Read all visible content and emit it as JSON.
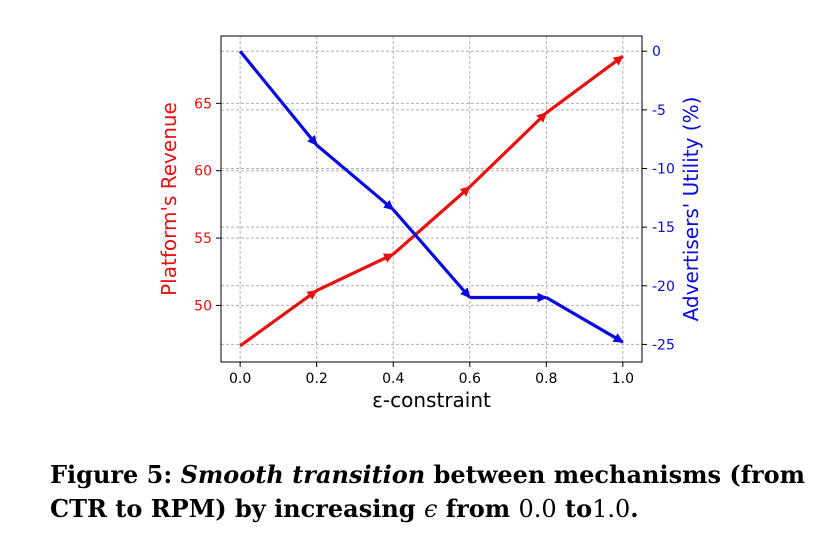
{
  "chart_data": {
    "type": "line",
    "xlabel": "ε-constraint",
    "x": [
      0.0,
      0.2,
      0.4,
      0.6,
      0.8,
      1.0
    ],
    "xticks": [
      "0.0",
      "0.2",
      "0.4",
      "0.6",
      "0.8",
      "1.0"
    ],
    "xlim": [
      -0.05,
      1.05
    ],
    "grid": true,
    "series": [
      {
        "name": "Platform's Revenue",
        "axis": "left",
        "color": "#e81010",
        "values": [
          47.0,
          51.1,
          53.8,
          58.8,
          64.3,
          68.5
        ]
      },
      {
        "name": "Advertisers' Utility (%)",
        "axis": "right",
        "color": "#0a0ae0",
        "values": [
          0.0,
          -8.0,
          -13.5,
          -21.0,
          -21.0,
          -24.8
        ]
      }
    ],
    "left_axis": {
      "label": "Platform's Revenue",
      "ticks": [
        50,
        55,
        60,
        65
      ],
      "tick_labels": [
        "50",
        "55",
        "60",
        "65"
      ],
      "range": [
        45.8,
        70.0
      ]
    },
    "right_axis": {
      "label": "Advertisers' Utility (%)",
      "ticks": [
        0,
        -5,
        -10,
        -15,
        -20,
        -25
      ],
      "tick_labels": [
        "0",
        "-5",
        "-10",
        "-15",
        "-20",
        "-25"
      ],
      "range": [
        -26.5,
        1.3
      ]
    }
  },
  "caption": {
    "prefix": "Figure 5:",
    "italic": "Smooth transition",
    "text1": "between mechanisms (from CTR to RPM) by increasing",
    "epsilon": "ϵ",
    "text2": "from",
    "from_val": "0.0",
    "text3": "to",
    "to_val": "1.0",
    "end": "."
  }
}
